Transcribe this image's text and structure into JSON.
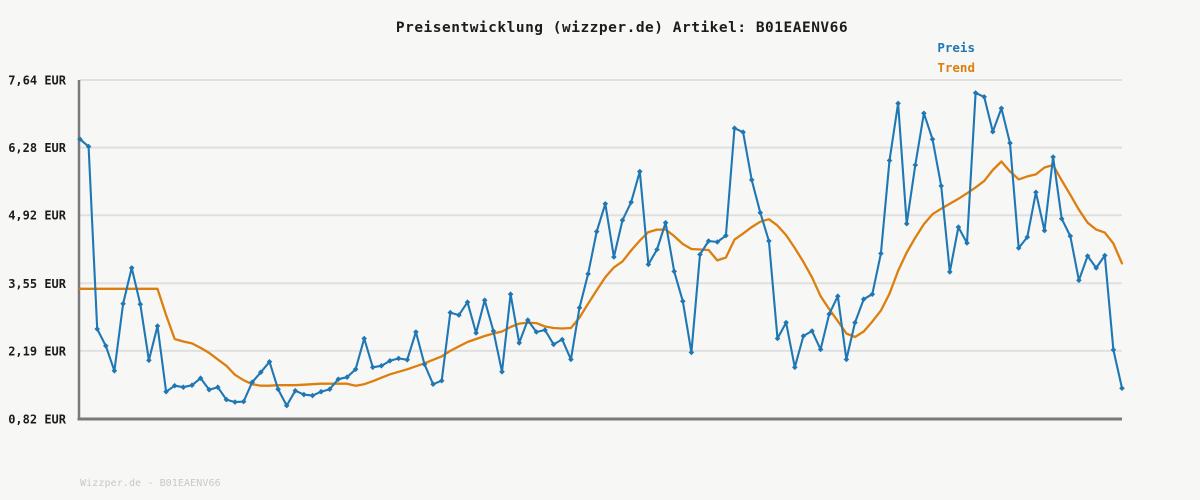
{
  "page": {
    "background": "#f7f7f5"
  },
  "header": {
    "title": "Preisentwicklung (wizzper.de) Artikel: B01EAENV66"
  },
  "legend": {
    "items": [
      {
        "label": "Preis",
        "color": "#1f77b4"
      },
      {
        "label": "Trend",
        "color": "#dc7f0e"
      }
    ]
  },
  "footer": {
    "text": "Wizzper.de - B01EAENV66"
  },
  "chart_data": {
    "type": "line",
    "title": "Preisentwicklung (wizzper.de) Artikel: B01EAENV66",
    "ylabel": "",
    "xlabel": "",
    "currency": "EUR",
    "grid": true,
    "legend_position": "top-right",
    "x_tick_labels_visible": false,
    "ylim": [
      0.82,
      7.64
    ],
    "y_ticks": [
      {
        "value": 7.64,
        "label": "7,64 EUR"
      },
      {
        "value": 6.28,
        "label": "6,28 EUR"
      },
      {
        "value": 4.92,
        "label": "4,92 EUR"
      },
      {
        "value": 3.55,
        "label": "3,55 EUR"
      },
      {
        "value": 2.19,
        "label": "2,19 EUR"
      },
      {
        "value": 0.82,
        "label": "0,82 EUR"
      }
    ],
    "colors": {
      "grid": "#e0e0e0",
      "axis": "#7a7a7a"
    },
    "series": [
      {
        "name": "Preis",
        "color": "#1f77b4",
        "markers": "diamond",
        "values": [
          6.45,
          6.3,
          2.63,
          2.29,
          1.79,
          3.14,
          3.86,
          3.13,
          2.0,
          2.69,
          1.37,
          1.49,
          1.46,
          1.5,
          1.64,
          1.41,
          1.46,
          1.21,
          1.16,
          1.17,
          1.56,
          1.76,
          1.97,
          1.42,
          1.09,
          1.39,
          1.31,
          1.29,
          1.37,
          1.42,
          1.62,
          1.66,
          1.82,
          2.44,
          1.86,
          1.89,
          1.99,
          2.04,
          2.01,
          2.57,
          1.92,
          1.52,
          1.59,
          2.96,
          2.91,
          3.17,
          2.55,
          3.21,
          2.59,
          1.77,
          3.33,
          2.35,
          2.81,
          2.57,
          2.61,
          2.32,
          2.42,
          2.02,
          3.06,
          3.74,
          4.59,
          5.15,
          4.08,
          4.82,
          5.18,
          5.8,
          3.93,
          4.23,
          4.77,
          3.79,
          3.19,
          2.16,
          4.13,
          4.4,
          4.38,
          4.51,
          6.67,
          6.59,
          5.63,
          4.97,
          4.4,
          2.44,
          2.76,
          1.86,
          2.49,
          2.59,
          2.22,
          2.93,
          3.29,
          2.02,
          2.76,
          3.23,
          3.33,
          4.15,
          6.02,
          7.17,
          4.75,
          5.93,
          6.97,
          6.45,
          5.51,
          3.78,
          4.68,
          4.36,
          7.38,
          7.3,
          6.6,
          7.07,
          6.37,
          4.26,
          4.48,
          5.38,
          4.61,
          6.09,
          4.85,
          4.5,
          3.61,
          4.1,
          3.86,
          4.11,
          2.21,
          1.44
        ]
      },
      {
        "name": "Trend",
        "color": "#dc7f0e",
        "markers": "none",
        "values": [
          3.44,
          3.44,
          3.44,
          3.44,
          3.44,
          3.44,
          3.44,
          3.44,
          3.44,
          3.44,
          2.91,
          2.43,
          2.38,
          2.34,
          2.25,
          2.15,
          2.02,
          1.89,
          1.71,
          1.6,
          1.52,
          1.49,
          1.49,
          1.5,
          1.5,
          1.5,
          1.51,
          1.52,
          1.53,
          1.53,
          1.53,
          1.53,
          1.49,
          1.52,
          1.58,
          1.65,
          1.72,
          1.77,
          1.82,
          1.88,
          1.94,
          2.01,
          2.08,
          2.19,
          2.28,
          2.37,
          2.43,
          2.49,
          2.54,
          2.58,
          2.67,
          2.74,
          2.76,
          2.75,
          2.68,
          2.65,
          2.64,
          2.65,
          2.86,
          3.14,
          3.41,
          3.67,
          3.87,
          3.99,
          4.21,
          4.41,
          4.58,
          4.63,
          4.63,
          4.5,
          4.34,
          4.24,
          4.23,
          4.22,
          4.01,
          4.07,
          4.43,
          4.55,
          4.68,
          4.79,
          4.84,
          4.71,
          4.52,
          4.26,
          3.98,
          3.67,
          3.29,
          3.03,
          2.79,
          2.54,
          2.47,
          2.58,
          2.78,
          3.0,
          3.34,
          3.8,
          4.17,
          4.47,
          4.74,
          4.94,
          5.05,
          5.15,
          5.25,
          5.36,
          5.48,
          5.61,
          5.83,
          6.0,
          5.8,
          5.64,
          5.7,
          5.74,
          5.88,
          5.93,
          5.62,
          5.33,
          5.03,
          4.77,
          4.63,
          4.57,
          4.35,
          3.95
        ]
      }
    ]
  }
}
